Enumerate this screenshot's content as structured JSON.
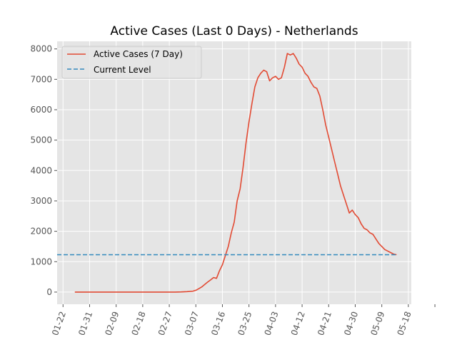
{
  "chart_data": {
    "type": "line",
    "title": "Active Cases (Last 0 Days) - Netherlands",
    "xlabel": "",
    "ylabel": "",
    "ylim": [
      -400,
      8250
    ],
    "xlim_day": [
      -2,
      118
    ],
    "grid": true,
    "legend_position": "top-left",
    "colors": {
      "plot_bg": "#E5E5E5",
      "grid": "#FFFFFF",
      "active": "#E24A33",
      "current": "#348ABD"
    },
    "y_ticks": [
      {
        "value": 0,
        "label": "0"
      },
      {
        "value": 1000,
        "label": "1000"
      },
      {
        "value": 2000,
        "label": "2000"
      },
      {
        "value": 3000,
        "label": "3000"
      },
      {
        "value": 4000,
        "label": "4000"
      },
      {
        "value": 5000,
        "label": "5000"
      },
      {
        "value": 6000,
        "label": "6000"
      },
      {
        "value": 7000,
        "label": "7000"
      },
      {
        "value": 8000,
        "label": "8000"
      }
    ],
    "x_ticks": [
      {
        "day": 0,
        "label": "01-22"
      },
      {
        "day": 9,
        "label": "01-31"
      },
      {
        "day": 18,
        "label": "02-09"
      },
      {
        "day": 27,
        "label": "02-18"
      },
      {
        "day": 36,
        "label": "02-27"
      },
      {
        "day": 45,
        "label": "03-07"
      },
      {
        "day": 54,
        "label": "03-16"
      },
      {
        "day": 63,
        "label": "03-25"
      },
      {
        "day": 72,
        "label": "04-03"
      },
      {
        "day": 81,
        "label": "04-12"
      },
      {
        "day": 90,
        "label": "04-21"
      },
      {
        "day": 99,
        "label": "04-30"
      },
      {
        "day": 108,
        "label": "05-09"
      },
      {
        "day": 117,
        "label": "05-18"
      },
      {
        "day": 126,
        "label": ""
      }
    ],
    "series": [
      {
        "name": "Active Cases (7 Day)",
        "style": "solid",
        "points": [
          [
            4,
            0
          ],
          [
            10,
            0
          ],
          [
            20,
            0
          ],
          [
            30,
            0
          ],
          [
            36,
            0
          ],
          [
            38,
            0
          ],
          [
            40,
            5
          ],
          [
            42,
            15
          ],
          [
            44,
            30
          ],
          [
            45,
            60
          ],
          [
            46,
            110
          ],
          [
            47,
            170
          ],
          [
            48,
            250
          ],
          [
            49,
            330
          ],
          [
            50,
            400
          ],
          [
            51,
            480
          ],
          [
            52,
            450
          ],
          [
            53,
            700
          ],
          [
            54,
            900
          ],
          [
            55,
            1200
          ],
          [
            56,
            1500
          ],
          [
            57,
            1950
          ],
          [
            58,
            2300
          ],
          [
            59,
            3000
          ],
          [
            60,
            3400
          ],
          [
            61,
            4100
          ],
          [
            62,
            4900
          ],
          [
            63,
            5600
          ],
          [
            64,
            6200
          ],
          [
            65,
            6750
          ],
          [
            66,
            7050
          ],
          [
            67,
            7200
          ],
          [
            68,
            7300
          ],
          [
            69,
            7250
          ],
          [
            70,
            6950
          ],
          [
            71,
            7050
          ],
          [
            72,
            7100
          ],
          [
            73,
            7000
          ],
          [
            74,
            7050
          ],
          [
            75,
            7400
          ],
          [
            76,
            7850
          ],
          [
            77,
            7800
          ],
          [
            78,
            7850
          ],
          [
            79,
            7700
          ],
          [
            80,
            7500
          ],
          [
            81,
            7400
          ],
          [
            82,
            7200
          ],
          [
            83,
            7100
          ],
          [
            84,
            6900
          ],
          [
            85,
            6750
          ],
          [
            86,
            6700
          ],
          [
            87,
            6450
          ],
          [
            88,
            6000
          ],
          [
            89,
            5500
          ],
          [
            90,
            5100
          ],
          [
            91,
            4700
          ],
          [
            92,
            4300
          ],
          [
            93,
            3900
          ],
          [
            94,
            3500
          ],
          [
            95,
            3200
          ],
          [
            96,
            2900
          ],
          [
            97,
            2600
          ],
          [
            98,
            2700
          ],
          [
            99,
            2550
          ],
          [
            100,
            2450
          ],
          [
            101,
            2250
          ],
          [
            102,
            2100
          ],
          [
            103,
            2050
          ],
          [
            104,
            1950
          ],
          [
            105,
            1900
          ],
          [
            106,
            1750
          ],
          [
            107,
            1600
          ],
          [
            108,
            1500
          ],
          [
            109,
            1400
          ],
          [
            110,
            1350
          ],
          [
            111,
            1300
          ],
          [
            112,
            1250
          ],
          [
            113,
            1230
          ]
        ]
      },
      {
        "name": "Current Level",
        "style": "dashed",
        "points": [
          [
            -2,
            1230
          ],
          [
            113,
            1230
          ]
        ]
      }
    ]
  }
}
